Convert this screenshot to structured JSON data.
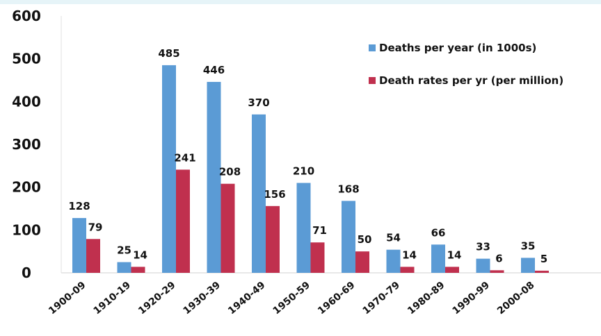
{
  "chart_data": {
    "type": "bar",
    "categories": [
      "1900-09",
      "1910-19",
      "1920-29",
      "1930-39",
      "1940-49",
      "1950-59",
      "1960-69",
      "1970-79",
      "1980-89",
      "1990-99",
      "2000-08"
    ],
    "series": [
      {
        "name": "Deaths per year (in 1000s)",
        "color": "#5b9bd5",
        "values": [
          128,
          25,
          485,
          446,
          370,
          210,
          168,
          54,
          66,
          33,
          35
        ]
      },
      {
        "name": "Death rates per yr (per million)",
        "color": "#c0304e",
        "values": [
          79,
          14,
          241,
          208,
          156,
          71,
          50,
          14,
          14,
          6,
          5
        ]
      }
    ],
    "yticks": [
      0,
      100,
      200,
      300,
      400,
      500,
      600
    ],
    "ylim": [
      0,
      600
    ],
    "grid": false,
    "legend_position": "top-right",
    "title": "",
    "xlabel": "",
    "ylabel": ""
  }
}
